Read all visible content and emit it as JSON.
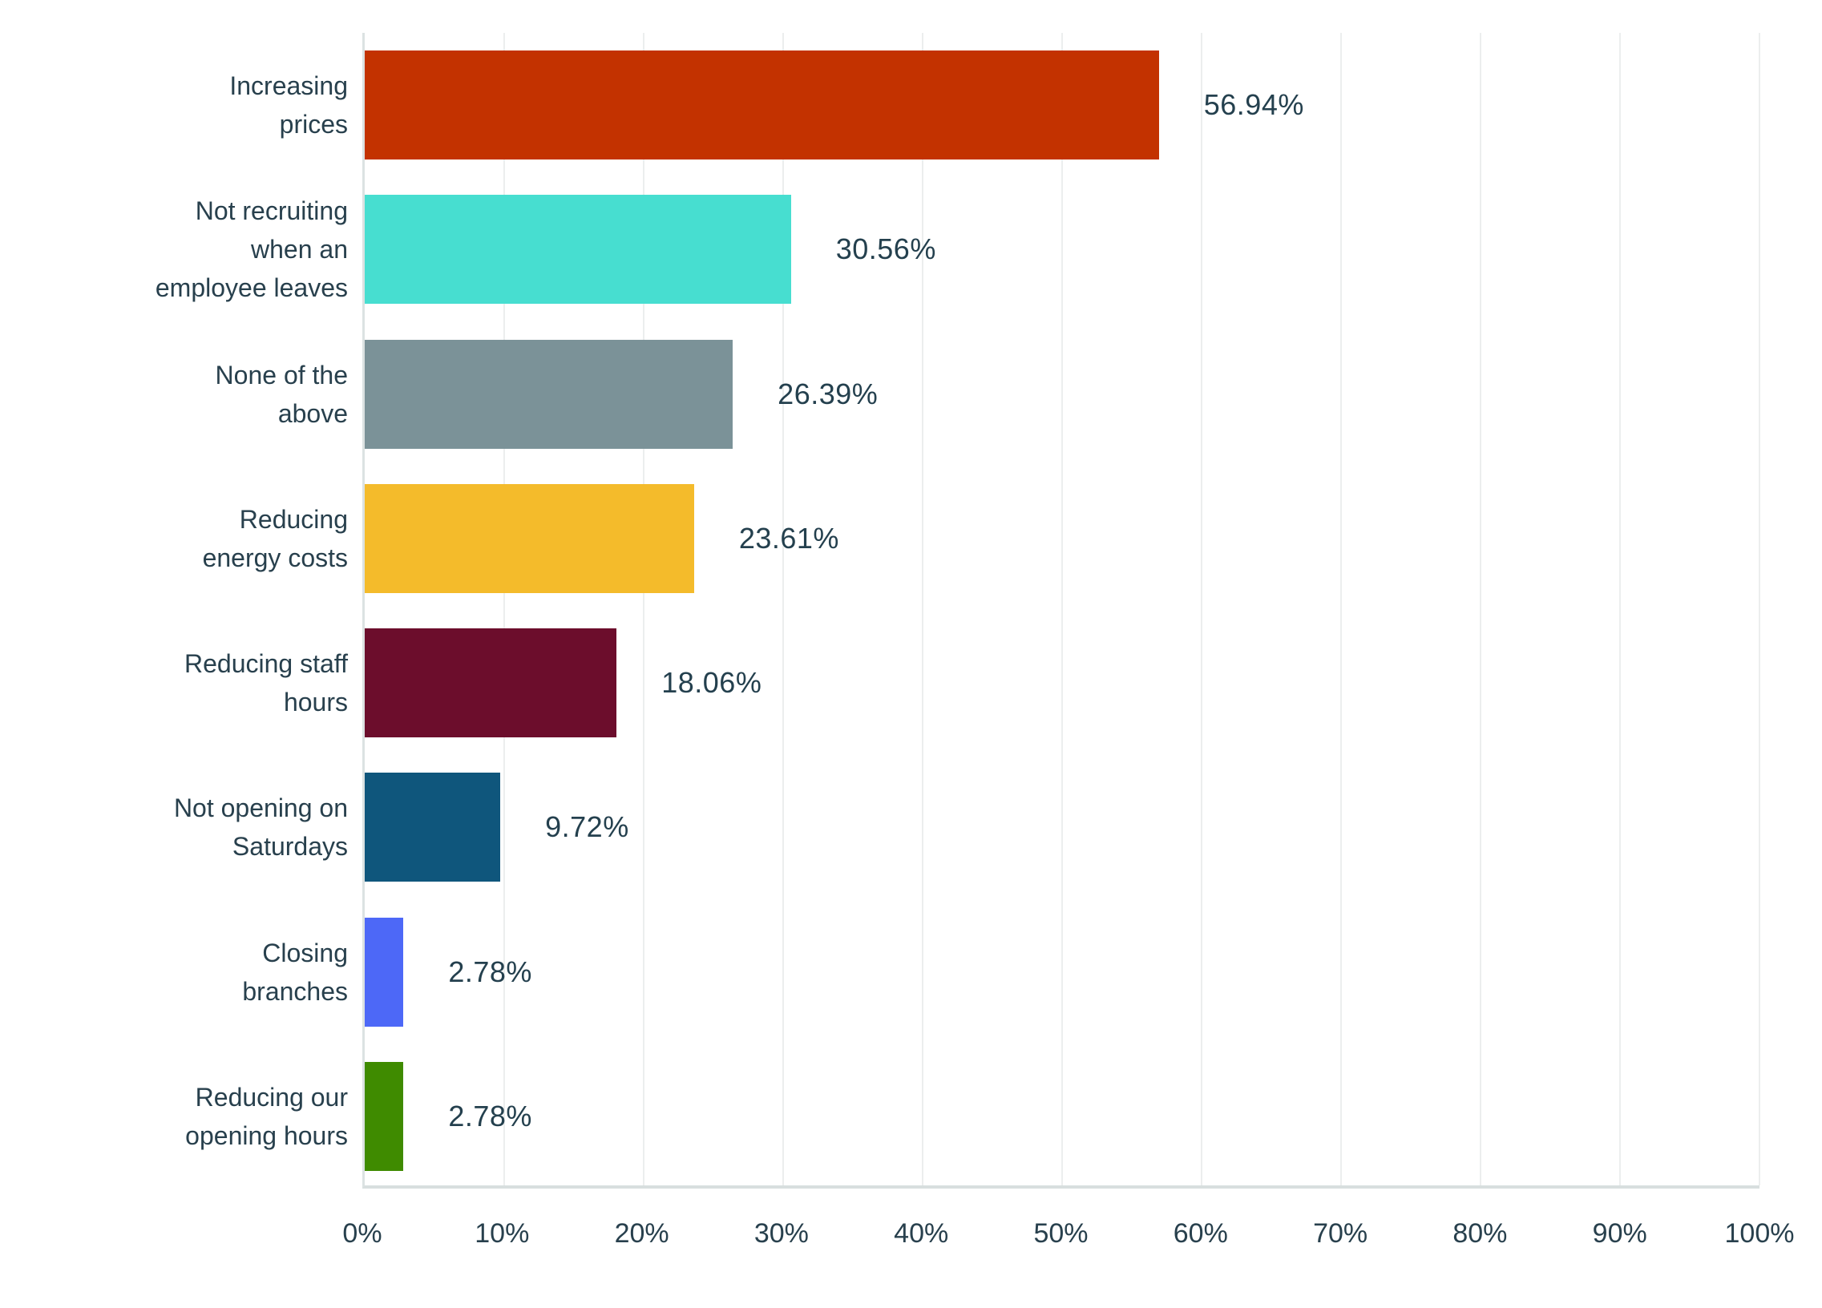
{
  "chart_data": {
    "type": "bar",
    "orientation": "horizontal",
    "title": "",
    "xlabel": "",
    "ylabel": "",
    "categories": [
      "Increasing prices",
      "Not recruiting when an employee leaves",
      "None of the above",
      "Reducing energy costs",
      "Reducing staff hours",
      "Not opening on Saturdays",
      "Closing branches",
      "Reducing our opening hours"
    ],
    "category_label_lines": [
      [
        "Increasing",
        "prices"
      ],
      [
        "Not recruiting",
        "when an",
        "employee leaves"
      ],
      [
        "None of the",
        "above"
      ],
      [
        "Reducing",
        "energy costs"
      ],
      [
        "Reducing staff",
        "hours"
      ],
      [
        "Not opening on",
        "Saturdays"
      ],
      [
        "Closing",
        "branches"
      ],
      [
        "Reducing our",
        "opening hours"
      ]
    ],
    "values": [
      56.94,
      30.56,
      26.39,
      23.61,
      18.06,
      9.72,
      2.78,
      2.78
    ],
    "value_labels": [
      "56.94%",
      "30.56%",
      "26.39%",
      "23.61%",
      "18.06%",
      "9.72%",
      "2.78%",
      "2.78%"
    ],
    "bar_colors": [
      "#c33200",
      "#47ded0",
      "#7b9298",
      "#f4bb2b",
      "#6c0d2c",
      "#0f567c",
      "#4d68f7",
      "#3f8b00"
    ],
    "xlim": [
      0,
      100
    ],
    "x_ticks": [
      "0%",
      "10%",
      "20%",
      "30%",
      "40%",
      "50%",
      "60%",
      "70%",
      "80%",
      "90%",
      "100%"
    ],
    "grid": "vertical-gridlines-on",
    "legend": "none",
    "colors": {
      "text": "#28404d",
      "gridline": "#eceeee",
      "axis_line": "#d8dfdf",
      "background": "#ffffff"
    }
  }
}
